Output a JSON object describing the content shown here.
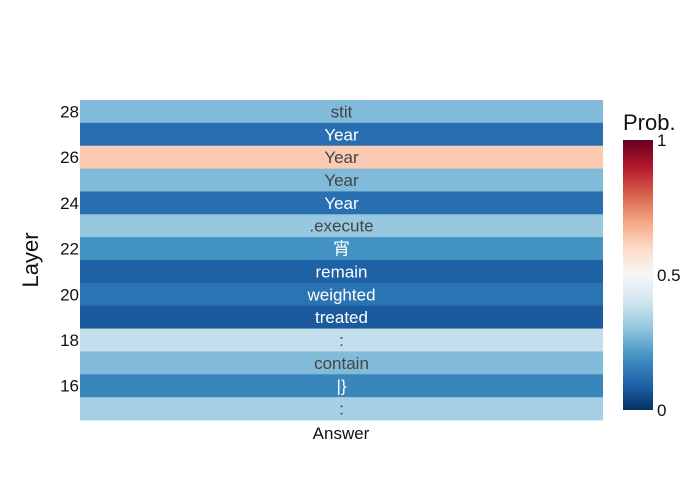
{
  "chart_data": {
    "type": "heatmap",
    "x": [
      "Answer"
    ],
    "y_tick_labels": [
      "16",
      "18",
      "20",
      "22",
      "24",
      "26",
      "28"
    ],
    "ylabel": "Layer",
    "xlabel": "",
    "colorbar": {
      "title": "Prob.",
      "range": [
        0,
        1
      ],
      "tick_labels": [
        "0",
        "0.5",
        "1"
      ],
      "colorscale": "RdBu (reversed)"
    },
    "rows": [
      {
        "layer": 28,
        "token": "stit",
        "prob": 0.28
      },
      {
        "layer": 27,
        "token": "Year",
        "prob": 0.12
      },
      {
        "layer": 26,
        "token": "Year",
        "prob": 0.63
      },
      {
        "layer": 25,
        "token": "Year",
        "prob": 0.28
      },
      {
        "layer": 24,
        "token": "Year",
        "prob": 0.12
      },
      {
        "layer": 23,
        "token": ".execute",
        "prob": 0.31
      },
      {
        "layer": 22,
        "token": "宵",
        "prob": 0.2
      },
      {
        "layer": 21,
        "token": "remain",
        "prob": 0.09
      },
      {
        "layer": 20,
        "token": "weighted",
        "prob": 0.13
      },
      {
        "layer": 19,
        "token": "treated",
        "prob": 0.08
      },
      {
        "layer": 18,
        "token": ":",
        "prob": 0.38
      },
      {
        "layer": 17,
        "token": "contain",
        "prob": 0.28
      },
      {
        "layer": 16,
        "token": "|}",
        "prob": 0.17
      },
      {
        "layer": 15,
        "token": ":",
        "prob": 0.33
      }
    ]
  }
}
